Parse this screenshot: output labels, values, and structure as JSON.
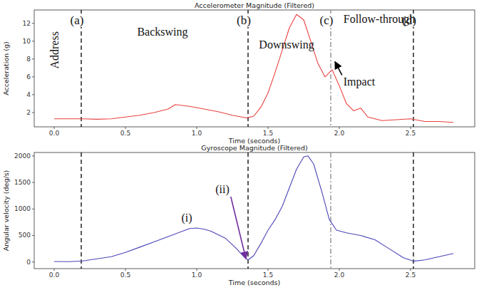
{
  "chart_data": [
    {
      "type": "line",
      "title": "Accelerometer Magnitude (Filtered)",
      "x_label": "Time (seconds)",
      "y_label": "Acceleration (g)",
      "color": "#e8423f",
      "grid": false,
      "xlim": [
        -0.14,
        2.95
      ],
      "ylim": [
        0.4,
        13.5
      ],
      "xticks": [
        {
          "value": 0,
          "label": "0.0"
        },
        0.5,
        {
          "value": 1,
          "label": "1.0"
        },
        1.5,
        {
          "value": 2,
          "label": "2.0"
        },
        2.5
      ],
      "yticks": [
        2,
        4,
        6,
        8,
        10,
        12
      ],
      "x": [
        0.0,
        0.1,
        0.2,
        0.3,
        0.4,
        0.5,
        0.6,
        0.7,
        0.8,
        0.85,
        0.95,
        1.05,
        1.15,
        1.25,
        1.35,
        1.4,
        1.45,
        1.5,
        1.55,
        1.6,
        1.65,
        1.7,
        1.75,
        1.8,
        1.85,
        1.9,
        1.95,
        2.0,
        2.05,
        2.1,
        2.15,
        2.2,
        2.3,
        2.4,
        2.5,
        2.6,
        2.7,
        2.8
      ],
      "values": [
        1.3,
        1.3,
        1.3,
        1.25,
        1.3,
        1.5,
        1.7,
        2.0,
        2.4,
        2.9,
        2.7,
        2.4,
        2.1,
        1.7,
        1.4,
        1.6,
        2.6,
        4.2,
        6.5,
        9.0,
        11.5,
        13.0,
        12.4,
        10.0,
        7.5,
        6.0,
        6.8,
        5.0,
        3.0,
        2.2,
        2.5,
        1.5,
        1.1,
        1.2,
        1.3,
        1.0,
        1.0,
        0.9
      ],
      "vlines": [
        {
          "x": 0.19,
          "label": "(a)",
          "line_style": "dashed",
          "color": "#000000"
        },
        {
          "x": 1.36,
          "label": "(b)",
          "line_style": "dashed",
          "color": "#000000"
        },
        {
          "x": 1.94,
          "label": "(c)",
          "line_style": "dashdot",
          "color": "#888888"
        },
        {
          "x": 2.52,
          "label": "(d)",
          "line_style": "dashed",
          "color": "#000000"
        }
      ],
      "annotations": [
        {
          "text": "Address",
          "x": 0.03,
          "y": 9.0,
          "orientation": "vertical",
          "color": "#000000"
        },
        {
          "text": "Backswing",
          "x": 0.76,
          "y": 10.6,
          "color": "#000000"
        },
        {
          "text": "Downswing",
          "x": 1.63,
          "y": 9.2,
          "color": "#000000"
        },
        {
          "text": "Follow-through",
          "x": 2.28,
          "y": 12.1,
          "color": "#000000"
        },
        {
          "text": "Impact",
          "x": 2.14,
          "y": 5.0,
          "color": "#000000",
          "arrow_to": [
            1.97,
            7.7
          ]
        }
      ]
    },
    {
      "type": "line",
      "title": "Gyroscope Magnitude (Filtered)",
      "x_label": "Time (seconds)",
      "y_label": "Angular velocity (deg/s)",
      "color": "#4b44b8",
      "grid": false,
      "xlim": [
        -0.14,
        2.95
      ],
      "ylim": [
        -125,
        2065
      ],
      "xticks": [
        {
          "value": 0,
          "label": "0.0"
        },
        0.5,
        {
          "value": 1,
          "label": "1.0"
        },
        1.5,
        {
          "value": 2,
          "label": "2.0"
        },
        2.5
      ],
      "yticks": [
        0,
        500,
        1000,
        1500,
        2000
      ],
      "x": [
        0.0,
        0.1,
        0.2,
        0.3,
        0.4,
        0.5,
        0.6,
        0.7,
        0.8,
        0.9,
        0.95,
        1.0,
        1.05,
        1.1,
        1.2,
        1.28,
        1.33,
        1.36,
        1.4,
        1.45,
        1.5,
        1.55,
        1.6,
        1.65,
        1.7,
        1.75,
        1.78,
        1.82,
        1.88,
        1.93,
        1.98,
        2.05,
        2.15,
        2.25,
        2.35,
        2.45,
        2.52,
        2.6,
        2.7,
        2.8
      ],
      "values": [
        10,
        5,
        20,
        60,
        100,
        180,
        280,
        380,
        480,
        580,
        630,
        640,
        620,
        580,
        450,
        250,
        100,
        40,
        120,
        350,
        600,
        800,
        1050,
        1400,
        1750,
        1980,
        2000,
        1850,
        1300,
        800,
        600,
        550,
        500,
        420,
        250,
        80,
        15,
        40,
        100,
        160
      ],
      "vlines": [
        {
          "x": 0.19,
          "line_style": "dashed",
          "color": "#000000"
        },
        {
          "x": 1.36,
          "line_style": "dashed",
          "color": "#000000"
        },
        {
          "x": 1.94,
          "line_style": "dashdot",
          "color": "#888888"
        },
        {
          "x": 2.52,
          "line_style": "dashed",
          "color": "#000000"
        }
      ],
      "annotations": [
        {
          "text": "(i)",
          "x": 0.93,
          "y": 760,
          "color": "#000000"
        },
        {
          "text": "(ii)",
          "x": 1.18,
          "y": 1300,
          "color": "#7030a0",
          "arrow_to": [
            1.345,
            60
          ]
        }
      ]
    }
  ]
}
